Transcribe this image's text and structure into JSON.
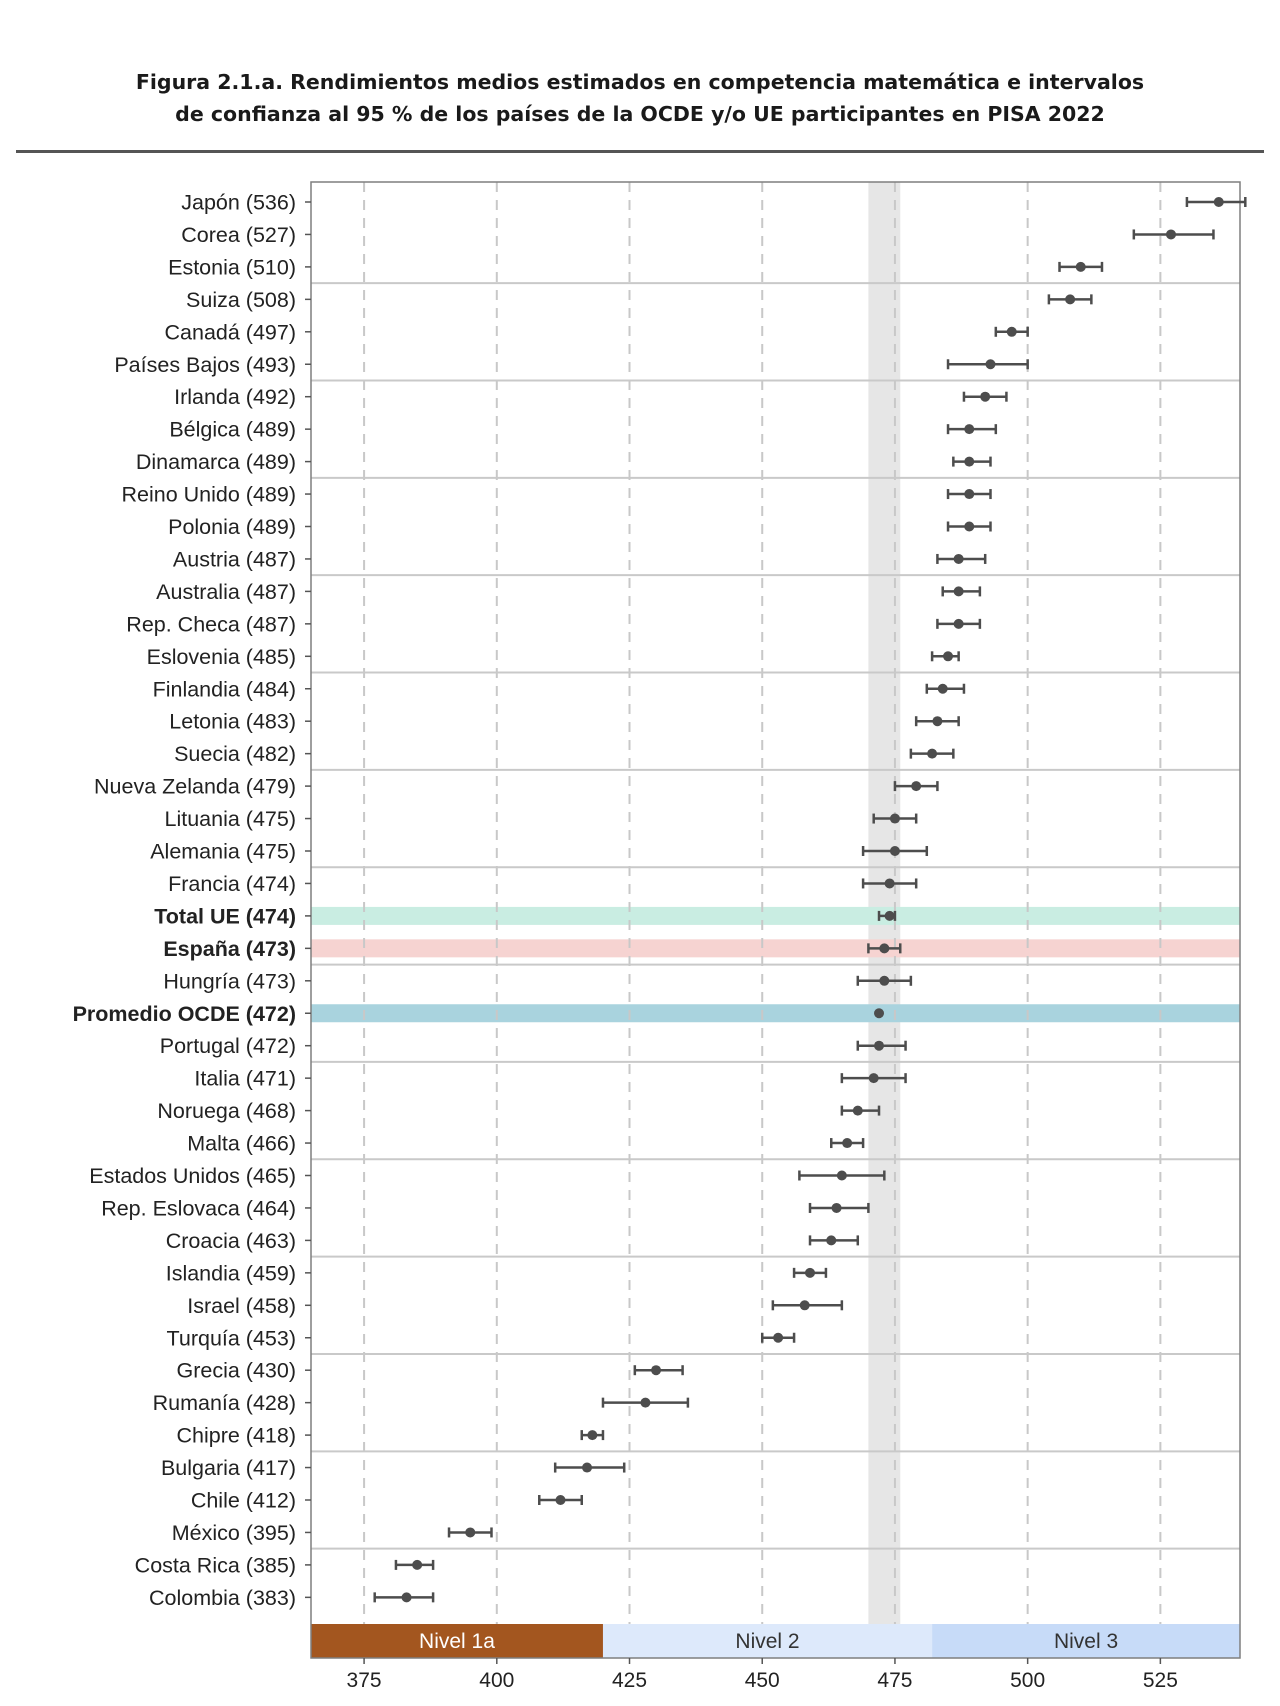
{
  "title": {
    "line1": "Figura 2.1.a. Rendimientos medios estimados en competencia matemática e intervalos",
    "line2": "de confianza al 95 % de los países de la OCDE y/o UE participantes en PISA 2022"
  },
  "chart_data": {
    "type": "scatter",
    "subtype": "dot-with-95%-confidence-intervals",
    "xlim": [
      365,
      540
    ],
    "x_ticks": [
      375,
      400,
      425,
      450,
      475,
      500,
      525
    ],
    "grid": "vertical dashed at ticks",
    "reference_band": [
      470,
      476
    ],
    "colors": {
      "point": "#4d4d4d",
      "highlight_eu": "#c9ede2",
      "highlight_spain": "#f6d3d1",
      "highlight_oecd": "#a9d3de",
      "reference_band": "#e6e6e6",
      "nivel_1a": "#a3561f",
      "nivel_2": "#dde9fb",
      "nivel_3": "#c7dbf8"
    },
    "levels": [
      {
        "label": "Nivel 1a",
        "from": 365,
        "to": 420
      },
      {
        "label": "Nivel 2",
        "from": 420,
        "to": 482
      },
      {
        "label": "Nivel 3",
        "from": 482,
        "to": 540
      }
    ],
    "points": [
      {
        "label": "Japón (536)",
        "value": 536,
        "low": 530,
        "high": 541
      },
      {
        "label": "Corea (527)",
        "value": 527,
        "low": 520,
        "high": 535
      },
      {
        "label": "Estonia (510)",
        "value": 510,
        "low": 506,
        "high": 514
      },
      {
        "label": "Suiza (508)",
        "value": 508,
        "low": 504,
        "high": 512
      },
      {
        "label": "Canadá (497)",
        "value": 497,
        "low": 494,
        "high": 500
      },
      {
        "label": "Países Bajos (493)",
        "value": 493,
        "low": 485,
        "high": 500
      },
      {
        "label": "Irlanda (492)",
        "value": 492,
        "low": 488,
        "high": 496
      },
      {
        "label": "Bélgica (489)",
        "value": 489,
        "low": 485,
        "high": 494
      },
      {
        "label": "Dinamarca (489)",
        "value": 489,
        "low": 486,
        "high": 493
      },
      {
        "label": "Reino Unido (489)",
        "value": 489,
        "low": 485,
        "high": 493
      },
      {
        "label": "Polonia (489)",
        "value": 489,
        "low": 485,
        "high": 493
      },
      {
        "label": "Austria (487)",
        "value": 487,
        "low": 483,
        "high": 492
      },
      {
        "label": "Australia (487)",
        "value": 487,
        "low": 484,
        "high": 491
      },
      {
        "label": "Rep. Checa (487)",
        "value": 487,
        "low": 483,
        "high": 491
      },
      {
        "label": "Eslovenia (485)",
        "value": 485,
        "low": 482,
        "high": 487
      },
      {
        "label": "Finlandia (484)",
        "value": 484,
        "low": 481,
        "high": 488
      },
      {
        "label": "Letonia (483)",
        "value": 483,
        "low": 479,
        "high": 487
      },
      {
        "label": "Suecia (482)",
        "value": 482,
        "low": 478,
        "high": 486
      },
      {
        "label": "Nueva Zelanda (479)",
        "value": 479,
        "low": 475,
        "high": 483
      },
      {
        "label": "Lituania (475)",
        "value": 475,
        "low": 471,
        "high": 479
      },
      {
        "label": "Alemania (475)",
        "value": 475,
        "low": 469,
        "high": 481
      },
      {
        "label": "Francia (474)",
        "value": 474,
        "low": 469,
        "high": 479
      },
      {
        "label": "Total UE (474)",
        "value": 474,
        "low": 472,
        "high": 475,
        "bold": true,
        "highlight": "highlight_eu"
      },
      {
        "label": "España (473)",
        "value": 473,
        "low": 470,
        "high": 476,
        "bold": true,
        "highlight": "highlight_spain"
      },
      {
        "label": "Hungría (473)",
        "value": 473,
        "low": 468,
        "high": 478
      },
      {
        "label": "Promedio OCDE (472)",
        "value": 472,
        "low": 472,
        "high": 472,
        "bold": true,
        "highlight": "highlight_oecd"
      },
      {
        "label": "Portugal (472)",
        "value": 472,
        "low": 468,
        "high": 477
      },
      {
        "label": "Italia (471)",
        "value": 471,
        "low": 465,
        "high": 477
      },
      {
        "label": "Noruega (468)",
        "value": 468,
        "low": 465,
        "high": 472
      },
      {
        "label": "Malta (466)",
        "value": 466,
        "low": 463,
        "high": 469
      },
      {
        "label": "Estados Unidos (465)",
        "value": 465,
        "low": 457,
        "high": 473
      },
      {
        "label": "Rep. Eslovaca (464)",
        "value": 464,
        "low": 459,
        "high": 470
      },
      {
        "label": "Croacia (463)",
        "value": 463,
        "low": 459,
        "high": 468
      },
      {
        "label": "Islandia (459)",
        "value": 459,
        "low": 456,
        "high": 462
      },
      {
        "label": "Israel (458)",
        "value": 458,
        "low": 452,
        "high": 465
      },
      {
        "label": "Turquía (453)",
        "value": 453,
        "low": 450,
        "high": 456
      },
      {
        "label": "Grecia (430)",
        "value": 430,
        "low": 426,
        "high": 435
      },
      {
        "label": "Rumanía (428)",
        "value": 428,
        "low": 420,
        "high": 436
      },
      {
        "label": "Chipre (418)",
        "value": 418,
        "low": 416,
        "high": 420
      },
      {
        "label": "Bulgaria (417)",
        "value": 417,
        "low": 411,
        "high": 424
      },
      {
        "label": "Chile (412)",
        "value": 412,
        "low": 408,
        "high": 416
      },
      {
        "label": "México (395)",
        "value": 395,
        "low": 391,
        "high": 399
      },
      {
        "label": "Costa Rica (385)",
        "value": 385,
        "low": 381,
        "high": 388
      },
      {
        "label": "Colombia (383)",
        "value": 383,
        "low": 377,
        "high": 388
      }
    ]
  }
}
